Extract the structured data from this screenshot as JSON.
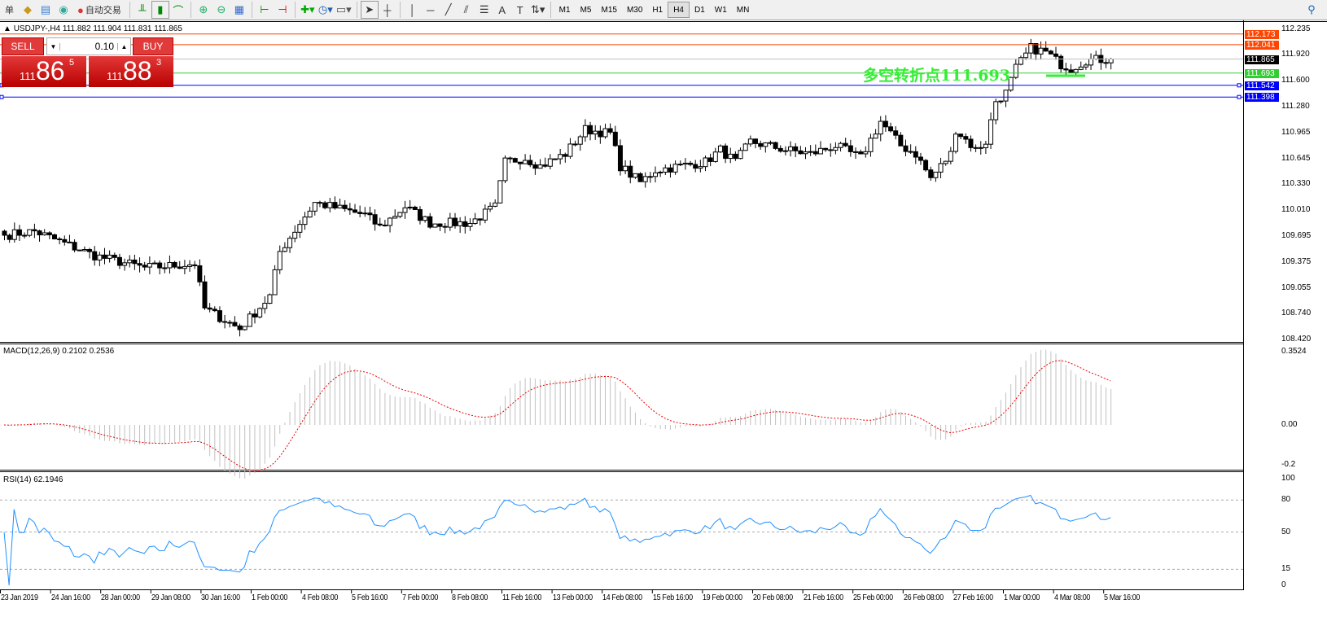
{
  "toolbar": {
    "menu_fragment": "单",
    "autotrade_label": "自动交易",
    "timeframes": [
      "M1",
      "M5",
      "M15",
      "M30",
      "H1",
      "H4",
      "D1",
      "W1",
      "MN"
    ],
    "active_timeframe": "H4",
    "icons": [
      "gold-bars-icon",
      "history-icon",
      "signal-icon",
      "autotrading-icon",
      "bar-chart-icon",
      "candlestick-icon",
      "line-chart-icon",
      "zoom-in-icon",
      "zoom-out-icon",
      "tile-windows-icon",
      "chart-shift-icon",
      "autoscroll-icon",
      "indicators-icon",
      "periods-clock-icon",
      "templates-icon",
      "cursor-icon",
      "crosshair-icon",
      "vertical-line-icon",
      "horizontal-line-icon",
      "trendline-icon",
      "fibonacci-icon",
      "equidistant-channel-icon",
      "text-icon",
      "text-label-icon",
      "arrows-icon",
      "search-icon"
    ]
  },
  "chart": {
    "title": "USDJPY-,H4  111.882 111.904 111.831 111.865",
    "trade": {
      "sell": "SELL",
      "buy": "BUY",
      "lot": "0.10",
      "bid_big": "111",
      "bid_mid": "86",
      "bid_small": "5",
      "ask_big": "111",
      "ask_mid": "88",
      "ask_small": "3"
    },
    "annotation": "多空转折点111.693",
    "price_ticks": [
      "112.235",
      "111.920",
      "111.600",
      "111.280",
      "110.965",
      "110.645",
      "110.330",
      "110.010",
      "109.695",
      "109.375",
      "109.055",
      "108.740",
      "108.420"
    ],
    "levels": [
      {
        "value": "112.173",
        "color": "#ff4500"
      },
      {
        "value": "112.041",
        "color": "#ff4500"
      },
      {
        "value": "111.865",
        "color": "#c0c0c0",
        "tag": "#000000"
      },
      {
        "value": "111.693",
        "color": "#33cc33"
      },
      {
        "value": "111.542",
        "color": "#0000ff"
      },
      {
        "value": "111.398",
        "color": "#0000ff"
      }
    ],
    "price_path": [
      [
        0,
        109.7
      ],
      [
        6,
        109.75
      ],
      [
        18,
        109.45
      ],
      [
        28,
        109.3
      ],
      [
        38,
        109.35
      ],
      [
        40,
        108.8
      ],
      [
        47,
        108.55
      ],
      [
        53,
        108.95
      ],
      [
        55,
        109.5
      ],
      [
        59,
        109.85
      ],
      [
        62,
        110.1
      ],
      [
        72,
        109.95
      ],
      [
        75,
        109.8
      ],
      [
        80,
        110.05
      ],
      [
        85,
        109.85
      ],
      [
        93,
        109.85
      ],
      [
        98,
        110.05
      ],
      [
        100,
        110.6
      ],
      [
        104,
        110.65
      ],
      [
        107,
        110.55
      ],
      [
        112,
        110.7
      ],
      [
        116,
        111.0
      ],
      [
        121,
        110.95
      ],
      [
        123,
        110.55
      ],
      [
        127,
        110.35
      ],
      [
        130,
        110.5
      ],
      [
        140,
        110.6
      ],
      [
        143,
        110.75
      ],
      [
        146,
        110.6
      ],
      [
        149,
        110.85
      ],
      [
        156,
        110.75
      ],
      [
        161,
        110.7
      ],
      [
        166,
        110.8
      ],
      [
        171,
        110.65
      ],
      [
        175,
        111.1
      ],
      [
        179,
        110.8
      ],
      [
        182,
        110.7
      ],
      [
        185,
        110.4
      ],
      [
        189,
        110.7
      ],
      [
        190,
        111.0
      ],
      [
        194,
        110.75
      ],
      [
        196,
        110.85
      ],
      [
        198,
        111.35
      ],
      [
        200,
        111.45
      ],
      [
        202,
        111.75
      ],
      [
        205,
        112.0
      ],
      [
        208,
        111.95
      ],
      [
        211,
        111.8
      ],
      [
        213,
        111.75
      ],
      [
        216,
        111.85
      ],
      [
        221,
        111.865
      ]
    ]
  },
  "macd": {
    "label": "MACD(12,26,9) 0.2102 0.2536",
    "ticks": [
      "0.3524",
      "0.00",
      "-0.2"
    ]
  },
  "rsi": {
    "label": "RSI(14) 62.1946",
    "ticks": [
      "100",
      "80",
      "50",
      "15",
      "0"
    ],
    "levels": [
      80,
      50,
      15
    ]
  },
  "time_labels": [
    "23 Jan 2019",
    "24 Jan 16:00",
    "28 Jan 00:00",
    "29 Jan 08:00",
    "30 Jan 16:00",
    "1 Feb 00:00",
    "4 Feb 08:00",
    "5 Feb 16:00",
    "7 Feb 00:00",
    "8 Feb 08:00",
    "11 Feb 16:00",
    "13 Feb 00:00",
    "14 Feb 08:00",
    "15 Feb 16:00",
    "19 Feb 00:00",
    "20 Feb 08:00",
    "21 Feb 16:00",
    "25 Feb 00:00",
    "26 Feb 08:00",
    "27 Feb 16:00",
    "1 Mar 00:00",
    "4 Mar 08:00",
    "5 Mar 16:00"
  ]
}
